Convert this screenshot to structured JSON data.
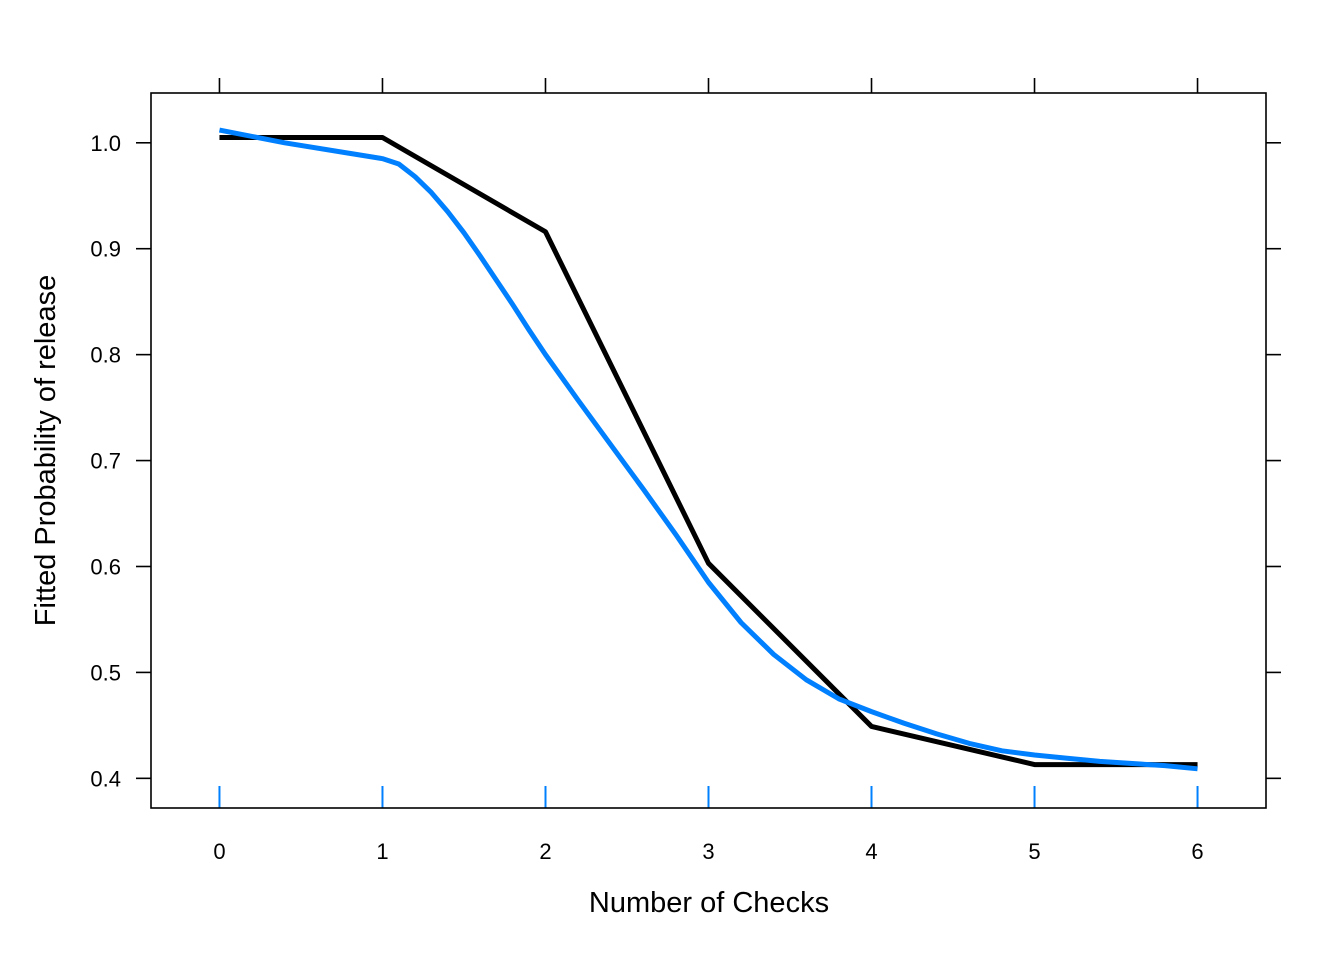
{
  "chart_data": {
    "type": "line",
    "title": "",
    "xlabel": "Number of Checks",
    "ylabel": "Fitted Probability of release",
    "xlim": [
      -0.42,
      6.42
    ],
    "ylim": [
      0.372,
      1.047
    ],
    "x_ticks": [
      0,
      1,
      2,
      3,
      4,
      5,
      6
    ],
    "x_tick_labels": [
      "0",
      "1",
      "2",
      "3",
      "4",
      "5",
      "6"
    ],
    "y_ticks": [
      0.4,
      0.5,
      0.6,
      0.7,
      0.8,
      0.9,
      1.0
    ],
    "y_tick_labels": [
      "0.4",
      "0.5",
      "0.6",
      "0.7",
      "0.8",
      "0.9",
      "1.0"
    ],
    "grid": false,
    "rug_x": [
      0,
      1,
      2,
      3,
      4,
      5,
      6
    ],
    "colors": {
      "observed": "#000000",
      "fitted": "#0080ff",
      "rug": "#0080ff"
    },
    "series": [
      {
        "role": "observed",
        "x": [
          0,
          1,
          2,
          3,
          4,
          5,
          6
        ],
        "y": [
          1.005,
          1.005,
          0.916,
          0.603,
          0.449,
          0.413,
          0.413
        ]
      },
      {
        "role": "fitted",
        "x": [
          0,
          0.4,
          0.8,
          1.0,
          1.1,
          1.2,
          1.3,
          1.4,
          1.5,
          1.6,
          1.7,
          1.8,
          1.9,
          2.0,
          2.2,
          2.4,
          2.6,
          2.8,
          3.0,
          3.2,
          3.4,
          3.6,
          3.8,
          4.0,
          4.2,
          4.4,
          4.6,
          4.8,
          5.0,
          5.2,
          5.4,
          5.6,
          5.8,
          6.0
        ],
        "y": [
          1.012,
          1.0,
          0.99,
          0.985,
          0.98,
          0.968,
          0.953,
          0.935,
          0.915,
          0.893,
          0.87,
          0.847,
          0.823,
          0.8,
          0.757,
          0.715,
          0.673,
          0.63,
          0.585,
          0.547,
          0.517,
          0.493,
          0.475,
          0.463,
          0.452,
          0.442,
          0.433,
          0.426,
          0.422,
          0.419,
          0.416,
          0.414,
          0.412,
          0.409
        ]
      }
    ]
  }
}
